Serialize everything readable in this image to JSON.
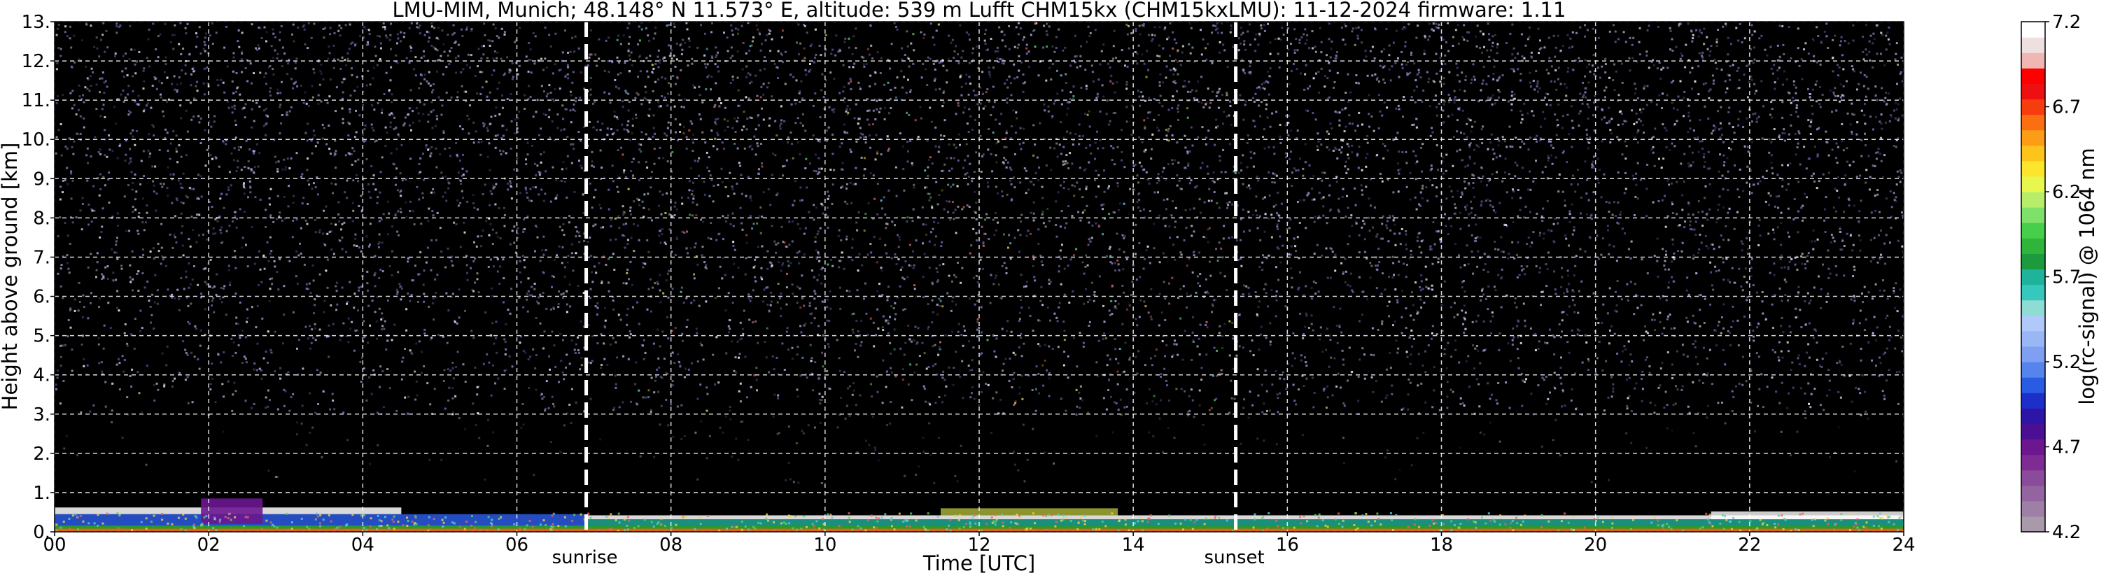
{
  "title": "LMU-MIM, Munich; 48.148° N 11.573° E, altitude: 539 m    Lufft CHM15kx (CHM15kxLMU): 11-12-2024    firmware: 1.11",
  "chart_data": {
    "type": "heatmap",
    "title": "LMU-MIM, Munich; 48.148° N 11.573° E, altitude: 539 m    Lufft CHM15kx (CHM15kxLMU): 11-12-2024    firmware: 1.11",
    "xlabel": "Time [UTC]",
    "ylabel": "Height above ground [km]",
    "xlim": [
      0,
      24
    ],
    "ylim": [
      0,
      13
    ],
    "x_ticks": [
      0,
      2,
      4,
      6,
      8,
      10,
      12,
      14,
      16,
      18,
      20,
      22,
      24
    ],
    "x_tick_labels": [
      "00",
      "02",
      "04",
      "06",
      "08",
      "10",
      "12",
      "14",
      "16",
      "18",
      "20",
      "22",
      "24"
    ],
    "y_ticks": [
      0,
      1,
      2,
      3,
      4,
      5,
      6,
      7,
      8,
      9,
      10,
      11,
      12,
      13
    ],
    "y_tick_labels": [
      "0.",
      "1.",
      "2.",
      "3.",
      "4.",
      "5.",
      "6.",
      "7.",
      "8.",
      "9.",
      "10.",
      "11.",
      "12.",
      "13."
    ],
    "grid": true,
    "markers": [
      {
        "label": "sunrise",
        "x": 6.9
      },
      {
        "label": "sunset",
        "x": 15.33
      }
    ],
    "colorbar": {
      "label": "log(rc-signal) @ 1064 nm",
      "range": [
        4.2,
        7.2
      ],
      "ticks": [
        4.2,
        4.7,
        5.2,
        5.7,
        6.2,
        6.7,
        7.2
      ],
      "tick_labels": [
        "4.2",
        "4.7",
        "5.2",
        "5.7",
        "6.2",
        "6.7",
        "7.2"
      ],
      "colors": [
        "#a89aab",
        "#9e7fa5",
        "#93649f",
        "#8a4c9a",
        "#7e2c93",
        "#6c1790",
        "#4b0f93",
        "#2f14a8",
        "#1c2fc8",
        "#2a5be3",
        "#5683ec",
        "#7f9ff2",
        "#99b6f5",
        "#b0c9f8",
        "#8fdcd5",
        "#35c8bd",
        "#20b39c",
        "#1d9a3d",
        "#2fb53a",
        "#45cf4a",
        "#7fe06a",
        "#b6ee6a",
        "#e8f74e",
        "#fbe62b",
        "#fdc41c",
        "#fd9d17",
        "#fb6e12",
        "#f73c0e",
        "#ee1010",
        "#fd0000",
        "#efb6b4",
        "#efe0e0",
        "#ffffff"
      ]
    },
    "background": "#000000",
    "grid_color": "#ffffff",
    "marker_color": "#ffffff"
  }
}
